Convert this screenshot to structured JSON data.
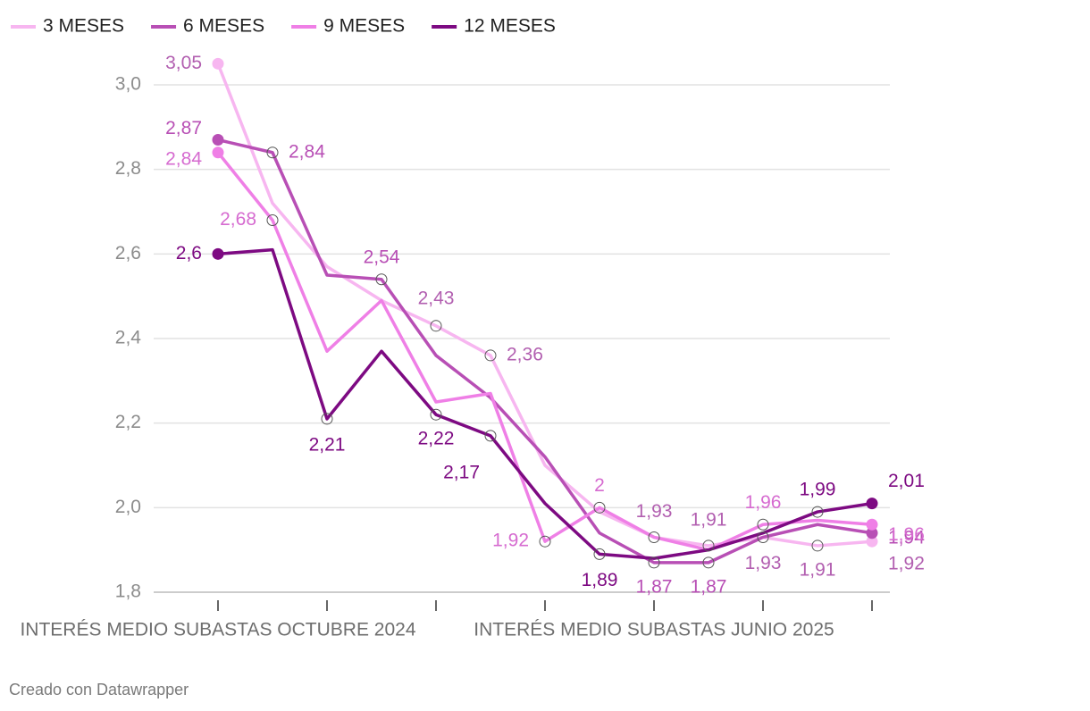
{
  "chart_data": {
    "type": "line",
    "categories": [
      "INTERÉS MEDIO SUBASTAS OCTUBRE 2024",
      null,
      null,
      null,
      null,
      null,
      null,
      null,
      "INTERÉS MEDIO SUBASTAS JUNIO 2025",
      null,
      null,
      null,
      null
    ],
    "series": [
      {
        "name": "3 MESES",
        "color": "#f7b6f0",
        "values": [
          3.05,
          2.72,
          2.57,
          2.49,
          2.43,
          2.36,
          2.1,
          1.99,
          1.93,
          1.91,
          1.93,
          1.91,
          1.92
        ],
        "value_labels": [
          "3,05",
          null,
          null,
          null,
          "2,43",
          "2,36",
          null,
          null,
          "1,93",
          "1,91",
          "1,93",
          "1,91",
          "1,92"
        ]
      },
      {
        "name": "6 MESES",
        "color": "#b84fb5",
        "values": [
          2.87,
          2.84,
          2.55,
          2.54,
          2.36,
          2.26,
          2.12,
          1.94,
          1.87,
          1.87,
          1.93,
          1.96,
          1.94
        ],
        "value_labels": [
          "2,87",
          "2,84",
          null,
          "2,54",
          null,
          null,
          null,
          null,
          "1,87",
          "1,87",
          null,
          null,
          "1,94"
        ]
      },
      {
        "name": "9 MESES",
        "color": "#ef7fe6",
        "values": [
          2.84,
          2.68,
          2.37,
          2.49,
          2.25,
          2.27,
          1.92,
          2.0,
          1.93,
          1.9,
          1.96,
          1.97,
          1.96
        ],
        "value_labels": [
          "2,84",
          "2,68",
          null,
          null,
          null,
          null,
          "1,92",
          "2",
          null,
          null,
          "1,96",
          null,
          "1,96"
        ]
      },
      {
        "name": "12 MESES",
        "color": "#7d0a82",
        "values": [
          2.6,
          2.61,
          2.21,
          2.37,
          2.22,
          2.17,
          2.01,
          1.89,
          1.88,
          1.9,
          1.94,
          1.99,
          2.01
        ],
        "value_labels": [
          "2,6",
          null,
          "2,21",
          null,
          "2,22",
          "2,17",
          null,
          "1,89",
          null,
          null,
          null,
          "1,99",
          "2,01"
        ]
      }
    ],
    "ylim": [
      1.8,
      3.0
    ],
    "yticks": [
      {
        "value": 1.8,
        "label": "1,8"
      },
      {
        "value": 2.0,
        "label": "2,0"
      },
      {
        "value": 2.2,
        "label": "2,2"
      },
      {
        "value": 2.4,
        "label": "2,4"
      },
      {
        "value": 2.6,
        "label": "2,6"
      },
      {
        "value": 2.8,
        "label": "2,8"
      },
      {
        "value": 3.0,
        "label": "3,0"
      }
    ],
    "grid": true,
    "footer": "Creado con Datawrapper"
  }
}
